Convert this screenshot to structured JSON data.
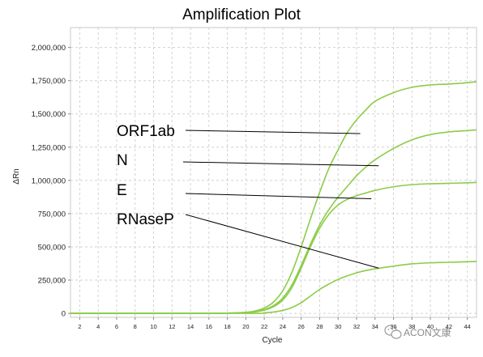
{
  "chart_data": {
    "type": "line",
    "title": "Amplification Plot",
    "xlabel": "Cycle",
    "ylabel": "ΔRn",
    "xlim": [
      1,
      45
    ],
    "ylim": [
      -30000,
      2150000
    ],
    "x_ticks": [
      2,
      4,
      6,
      8,
      10,
      12,
      14,
      16,
      18,
      20,
      22,
      24,
      26,
      28,
      30,
      32,
      34,
      36,
      38,
      40,
      42,
      44
    ],
    "y_ticks": [
      0,
      250000,
      500000,
      750000,
      1000000,
      1250000,
      1500000,
      1750000,
      2000000
    ],
    "y_tick_labels": [
      "0",
      "250,000",
      "500,000",
      "750,000",
      "1,000,000",
      "1,250,000",
      "1,500,000",
      "1,750,000",
      "2,000,000"
    ],
    "grid": true,
    "line_color": "#8ccc48",
    "curves": [
      {
        "points": [
          [
            1,
            0
          ],
          [
            16,
            0
          ],
          [
            18,
            2000
          ],
          [
            20,
            8000
          ],
          [
            21,
            18000
          ],
          [
            22,
            40000
          ],
          [
            23,
            85000
          ],
          [
            24,
            170000
          ],
          [
            25,
            310000
          ],
          [
            26,
            500000
          ],
          [
            27,
            710000
          ],
          [
            28,
            910000
          ],
          [
            29,
            1090000
          ],
          [
            30,
            1230000
          ],
          [
            31,
            1360000
          ],
          [
            32,
            1455000
          ],
          [
            33,
            1530000
          ],
          [
            34,
            1595000
          ],
          [
            36,
            1660000
          ],
          [
            38,
            1700000
          ],
          [
            40,
            1718000
          ],
          [
            42,
            1725000
          ],
          [
            44,
            1735000
          ],
          [
            45,
            1742000
          ]
        ]
      },
      {
        "points": [
          [
            1,
            0
          ],
          [
            16,
            0
          ],
          [
            18,
            2000
          ],
          [
            20,
            6000
          ],
          [
            21,
            13000
          ],
          [
            22,
            28000
          ],
          [
            23,
            58000
          ],
          [
            24,
            115000
          ],
          [
            25,
            215000
          ],
          [
            26,
            360000
          ],
          [
            27,
            520000
          ],
          [
            28,
            665000
          ],
          [
            29,
            780000
          ],
          [
            30,
            875000
          ],
          [
            31,
            955000
          ],
          [
            32,
            1035000
          ],
          [
            33,
            1100000
          ],
          [
            34,
            1155000
          ],
          [
            36,
            1240000
          ],
          [
            38,
            1305000
          ],
          [
            40,
            1345000
          ],
          [
            42,
            1365000
          ],
          [
            44,
            1375000
          ],
          [
            45,
            1380000
          ]
        ]
      },
      {
        "points": [
          [
            1,
            0
          ],
          [
            16,
            0
          ],
          [
            18,
            1500
          ],
          [
            20,
            5000
          ],
          [
            21,
            11000
          ],
          [
            22,
            24000
          ],
          [
            23,
            50000
          ],
          [
            24,
            100000
          ],
          [
            25,
            195000
          ],
          [
            26,
            340000
          ],
          [
            27,
            500000
          ],
          [
            28,
            640000
          ],
          [
            29,
            745000
          ],
          [
            30,
            815000
          ],
          [
            31,
            858000
          ],
          [
            32,
            885000
          ],
          [
            33,
            905000
          ],
          [
            34,
            925000
          ],
          [
            36,
            952000
          ],
          [
            38,
            968000
          ],
          [
            40,
            975000
          ],
          [
            42,
            978000
          ],
          [
            44,
            982000
          ],
          [
            45,
            985000
          ]
        ]
      },
      {
        "points": [
          [
            1,
            0
          ],
          [
            20,
            0
          ],
          [
            22,
            4000
          ],
          [
            23,
            10000
          ],
          [
            24,
            22000
          ],
          [
            25,
            44000
          ],
          [
            26,
            80000
          ],
          [
            27,
            130000
          ],
          [
            28,
            180000
          ],
          [
            29,
            220000
          ],
          [
            30,
            255000
          ],
          [
            31,
            282000
          ],
          [
            32,
            305000
          ],
          [
            33,
            322000
          ],
          [
            34,
            335000
          ],
          [
            36,
            355000
          ],
          [
            38,
            372000
          ],
          [
            40,
            380000
          ],
          [
            42,
            384000
          ],
          [
            44,
            388000
          ],
          [
            45,
            390000
          ]
        ]
      }
    ],
    "annotations": [
      {
        "text": "ORF1ab",
        "x": 32.4,
        "y": 1352000
      },
      {
        "text": "N",
        "x": 34.4,
        "y": 1110000
      },
      {
        "text": "E",
        "x": 33.6,
        "y": 862000
      },
      {
        "text": "RNaseP",
        "x": 34.4,
        "y": 340000
      }
    ]
  },
  "watermark": {
    "icon": "wechat-icon",
    "text": "ACON文康"
  }
}
